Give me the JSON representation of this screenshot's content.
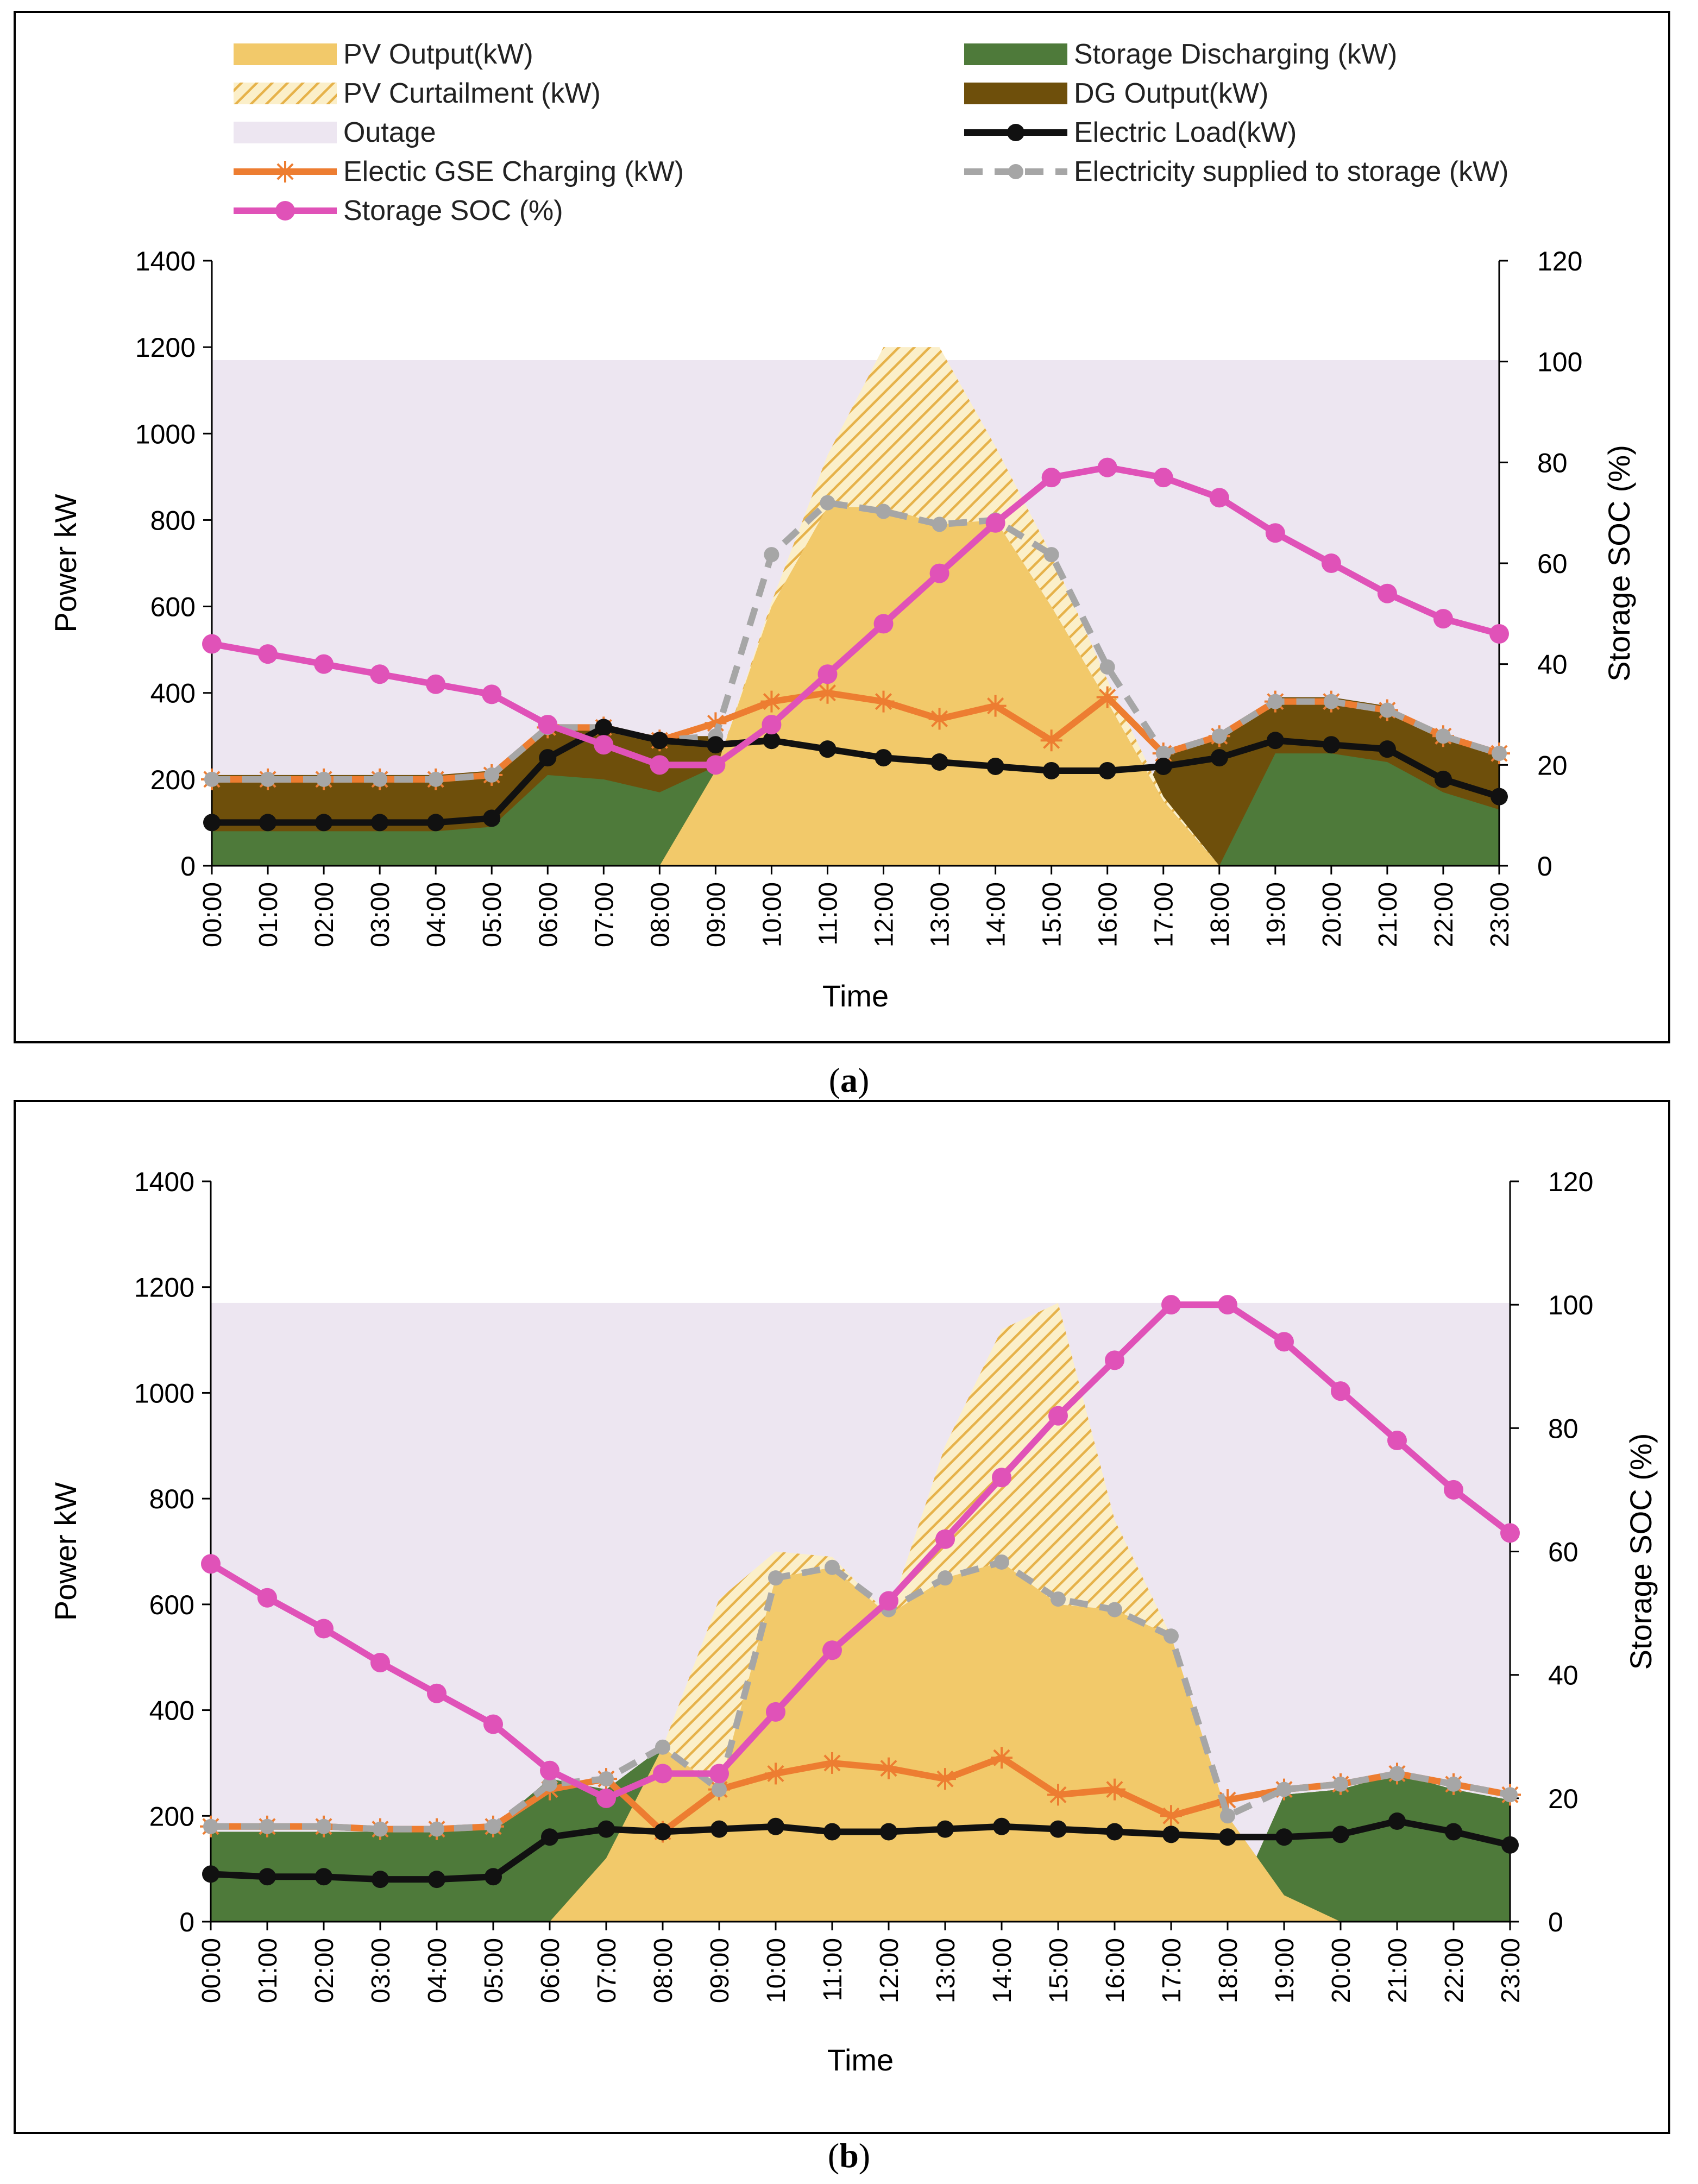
{
  "chart_data": [
    {
      "panel_label": "(a)",
      "panel_letter": "a",
      "type": "combo",
      "xlabel": "Time",
      "ylabel": "Power kW",
      "y2label": "Storage SOC (%)",
      "ylim": [
        0,
        1400
      ],
      "y2lim": [
        0,
        120
      ],
      "yticks": [
        "0",
        "200",
        "400",
        "600",
        "800",
        "1000",
        "1200",
        "1400"
      ],
      "y2ticks": [
        "0",
        "20",
        "40",
        "60",
        "80",
        "100",
        "120"
      ],
      "categories": [
        "00:00",
        "01:00",
        "02:00",
        "03:00",
        "04:00",
        "05:00",
        "06:00",
        "07:00",
        "08:00",
        "09:00",
        "10:00",
        "11:00",
        "12:00",
        "13:00",
        "14:00",
        "15:00",
        "16:00",
        "17:00",
        "18:00",
        "19:00",
        "20:00",
        "21:00",
        "22:00",
        "23:00"
      ],
      "outage": 1170,
      "series": {
        "storage_discharging": [
          80,
          80,
          80,
          80,
          80,
          90,
          210,
          200,
          170,
          230,
          0,
          0,
          0,
          0,
          0,
          0,
          0,
          80,
          0,
          260,
          260,
          240,
          170,
          130
        ],
        "dg_top": [
          210,
          210,
          210,
          210,
          210,
          220,
          320,
          320,
          300,
          300,
          0,
          0,
          0,
          0,
          0,
          0,
          0,
          260,
          300,
          390,
          390,
          370,
          300,
          260
        ],
        "pv_output": [
          0,
          0,
          0,
          0,
          0,
          0,
          0,
          0,
          0,
          220,
          600,
          830,
          830,
          790,
          800,
          600,
          380,
          150,
          0,
          0,
          0,
          0,
          0,
          0
        ],
        "pv_potential": [
          0,
          0,
          0,
          0,
          0,
          0,
          0,
          0,
          0,
          220,
          610,
          950,
          1200,
          1200,
          970,
          720,
          430,
          160,
          0,
          0,
          0,
          0,
          0,
          0
        ],
        "gse_charging": [
          200,
          200,
          200,
          200,
          200,
          210,
          320,
          320,
          290,
          330,
          380,
          400,
          380,
          340,
          370,
          290,
          390,
          260,
          300,
          380,
          380,
          360,
          300,
          260
        ],
        "electric_load": [
          100,
          100,
          100,
          100,
          100,
          110,
          250,
          320,
          290,
          280,
          290,
          270,
          250,
          240,
          230,
          220,
          220,
          230,
          250,
          290,
          280,
          270,
          200,
          160
        ],
        "storage_supply": [
          200,
          200,
          200,
          200,
          200,
          210,
          320,
          320,
          290,
          300,
          720,
          840,
          820,
          790,
          800,
          720,
          460,
          260,
          300,
          380,
          380,
          360,
          300,
          260
        ],
        "storage_soc": [
          44,
          42,
          40,
          38,
          36,
          34,
          28,
          24,
          20,
          20,
          28,
          38,
          48,
          58,
          68,
          77,
          79,
          77,
          73,
          66,
          60,
          54,
          49,
          46
        ]
      }
    },
    {
      "panel_label": "(b)",
      "panel_letter": "b",
      "type": "combo",
      "xlabel": "Time",
      "ylabel": "Power kW",
      "y2label": "Storage SOC (%)",
      "ylim": [
        0,
        1400
      ],
      "y2lim": [
        0,
        120
      ],
      "yticks": [
        "0",
        "200",
        "400",
        "600",
        "800",
        "1000",
        "1200",
        "1400"
      ],
      "y2ticks": [
        "0",
        "20",
        "40",
        "60",
        "80",
        "100",
        "120"
      ],
      "categories": [
        "00:00",
        "01:00",
        "02:00",
        "03:00",
        "04:00",
        "05:00",
        "06:00",
        "07:00",
        "08:00",
        "09:00",
        "10:00",
        "11:00",
        "12:00",
        "13:00",
        "14:00",
        "15:00",
        "16:00",
        "17:00",
        "18:00",
        "19:00",
        "20:00",
        "21:00",
        "22:00",
        "23:00"
      ],
      "outage": 1170,
      "series": {
        "storage_discharging": [
          170,
          170,
          170,
          170,
          170,
          180,
          270,
          250,
          330,
          0,
          0,
          0,
          0,
          0,
          0,
          0,
          0,
          0,
          0,
          240,
          250,
          280,
          250,
          230
        ],
        "dg_top": [
          170,
          170,
          170,
          170,
          170,
          180,
          270,
          250,
          330,
          0,
          0,
          0,
          0,
          0,
          0,
          0,
          0,
          0,
          0,
          240,
          250,
          280,
          250,
          230
        ],
        "pv_output": [
          0,
          0,
          0,
          0,
          0,
          0,
          0,
          120,
          330,
          250,
          650,
          670,
          580,
          650,
          680,
          600,
          590,
          540,
          200,
          50,
          0,
          0,
          0,
          0
        ],
        "pv_potential": [
          0,
          0,
          0,
          0,
          0,
          0,
          0,
          120,
          330,
          610,
          700,
          690,
          580,
          900,
          1120,
          1170,
          760,
          540,
          200,
          50,
          0,
          0,
          0,
          0
        ],
        "gse_charging": [
          180,
          180,
          180,
          175,
          175,
          180,
          250,
          270,
          170,
          250,
          280,
          300,
          290,
          270,
          310,
          240,
          250,
          200,
          230,
          250,
          260,
          280,
          260,
          240
        ],
        "electric_load": [
          90,
          85,
          85,
          80,
          80,
          85,
          160,
          175,
          170,
          175,
          180,
          170,
          170,
          175,
          180,
          175,
          170,
          165,
          160,
          160,
          165,
          190,
          170,
          145
        ],
        "storage_supply": [
          180,
          180,
          180,
          175,
          175,
          180,
          260,
          270,
          330,
          250,
          650,
          670,
          590,
          650,
          680,
          610,
          590,
          540,
          200,
          250,
          260,
          280,
          260,
          240
        ],
        "storage_soc": [
          58,
          52.5,
          47.5,
          42,
          37,
          32,
          24.5,
          20,
          24,
          24,
          34,
          44,
          52,
          62,
          72,
          82,
          91,
          100,
          100,
          94,
          86,
          78,
          70,
          63
        ]
      }
    }
  ],
  "legend": [
    {
      "key": "pv_output",
      "label": "PV Output(kW)"
    },
    {
      "key": "pv_curtailment",
      "label": "PV Curtailment (kW)"
    },
    {
      "key": "outage",
      "label": "Outage"
    },
    {
      "key": "gse_charging",
      "label": "Electic GSE Charging (kW)"
    },
    {
      "key": "storage_soc",
      "label": "Storage SOC (%)"
    },
    {
      "key": "storage_discharging",
      "label": "Storage Discharging (kW)"
    },
    {
      "key": "dg_output",
      "label": "DG Output(kW)"
    },
    {
      "key": "electric_load",
      "label": "Electric Load(kW)"
    },
    {
      "key": "storage_supply",
      "label": "Electricity supplied to storage (kW)"
    }
  ],
  "colors": {
    "pv": "#F2C96A",
    "pv_curtail": "#E9B84A",
    "outage": "#EDE6F1",
    "gse": "#ED7D31",
    "soc": "#E052B8",
    "storage": "#4E7A3A",
    "dg": "#6E4F0B",
    "load": "#111111",
    "supply": "#A6A6A6"
  }
}
